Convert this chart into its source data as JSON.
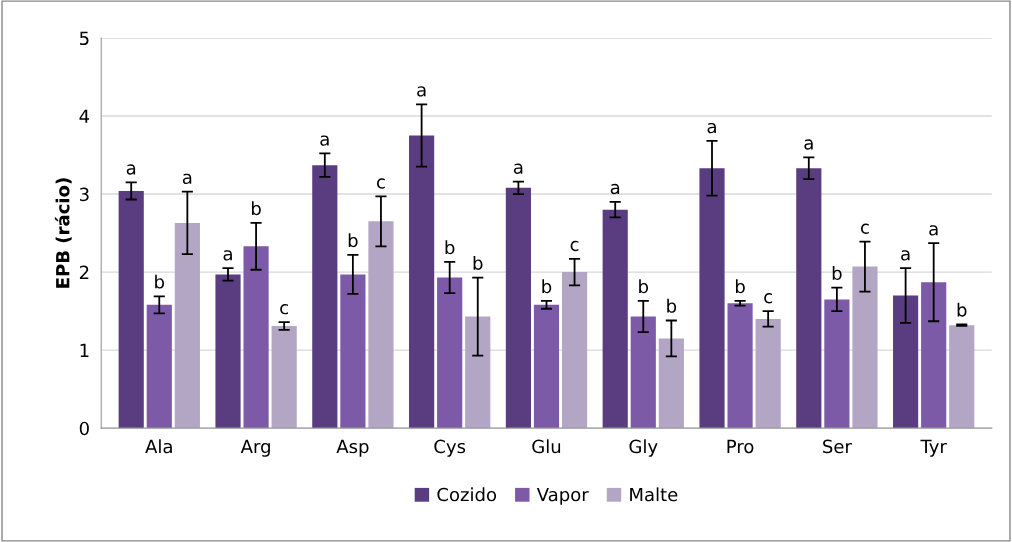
{
  "chart_data": {
    "type": "bar",
    "ylabel": "EPB (rácio)",
    "categories": [
      "Ala",
      "Arg",
      "Asp",
      "Cys",
      "Glu",
      "Gly",
      "Pro",
      "Ser",
      "Tyr"
    ],
    "series": [
      {
        "name": "Cozido",
        "color": "#5a3d80",
        "values": [
          3.04,
          1.97,
          3.37,
          3.75,
          3.08,
          2.8,
          3.33,
          3.33,
          1.7
        ],
        "errors": [
          0.11,
          0.08,
          0.15,
          0.4,
          0.08,
          0.1,
          0.35,
          0.14,
          0.35
        ],
        "value_labels": [
          "a",
          "a",
          "a",
          "a",
          "a",
          "a",
          "a",
          "a",
          "a"
        ]
      },
      {
        "name": "Vapor",
        "color": "#7d5aa8",
        "values": [
          1.58,
          2.33,
          1.97,
          1.93,
          1.58,
          1.43,
          1.6,
          1.65,
          1.87
        ],
        "errors": [
          0.11,
          0.3,
          0.25,
          0.2,
          0.05,
          0.2,
          0.03,
          0.15,
          0.5
        ],
        "value_labels": [
          "b",
          "b",
          "b",
          "b",
          "b",
          "b",
          "b",
          "b",
          "a"
        ]
      },
      {
        "name": "Malte",
        "color": "#b3a6c4",
        "values": [
          2.63,
          1.31,
          2.65,
          1.43,
          2.0,
          1.15,
          1.4,
          2.07,
          1.32
        ],
        "errors": [
          0.4,
          0.05,
          0.32,
          0.5,
          0.17,
          0.23,
          0.1,
          0.32,
          0.01
        ],
        "value_labels": [
          "a",
          "c",
          "c",
          "b",
          "c",
          "b",
          "c",
          "c",
          "b"
        ]
      }
    ],
    "ylim": [
      0,
      5
    ],
    "yticks": [
      0,
      1,
      2,
      3,
      4,
      5
    ],
    "grid": "y",
    "legend": "bottom"
  }
}
